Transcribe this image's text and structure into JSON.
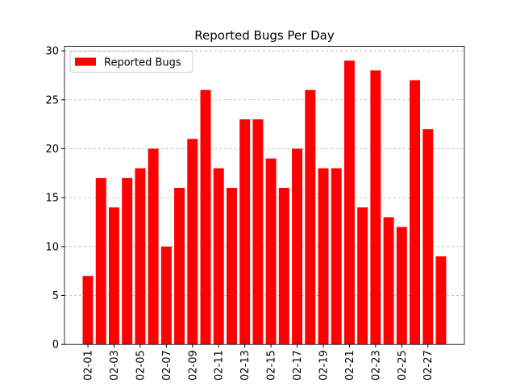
{
  "chart_data": {
    "type": "bar",
    "title": "Reported Bugs Per Day",
    "categories": [
      "02-01",
      null,
      "02-03",
      null,
      "02-05",
      null,
      "02-07",
      null,
      "02-09",
      null,
      "02-11",
      null,
      "02-13",
      null,
      "02-15",
      null,
      "02-17",
      null,
      "02-19",
      null,
      "02-21",
      null,
      "02-23",
      null,
      "02-25",
      null,
      "02-27",
      null
    ],
    "series": [
      {
        "name": "Reported Bugs",
        "color": "#ff0000",
        "values": [
          7,
          17,
          14,
          17,
          18,
          20,
          10,
          16,
          21,
          26,
          18,
          16,
          23,
          23,
          19,
          16,
          20,
          26,
          18,
          18,
          29,
          14,
          28,
          13,
          12,
          27,
          22,
          9
        ]
      }
    ],
    "ylim": [
      0,
      30.45
    ],
    "yticks": [
      0,
      5,
      10,
      15,
      20,
      25,
      30
    ],
    "grid": true,
    "legend": "upper left"
  }
}
